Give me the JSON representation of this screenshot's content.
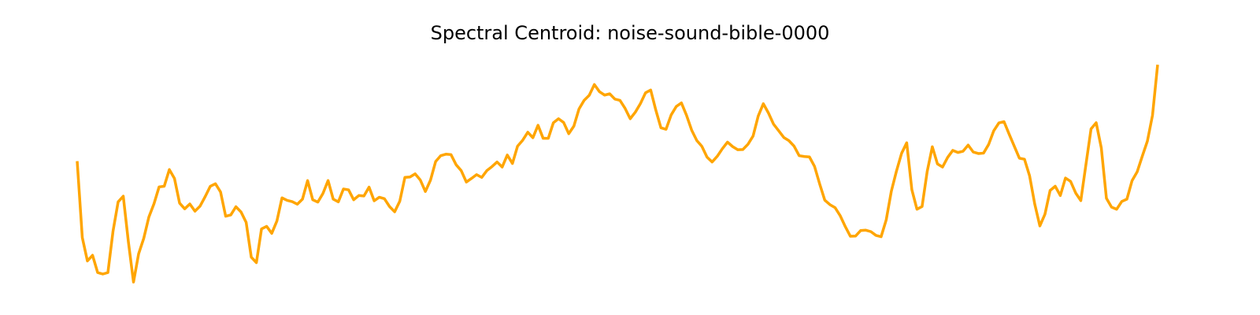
{
  "chart_data": {
    "type": "line",
    "title": "Spectral Centroid: noise-sound-bible-0000",
    "xlabel": "",
    "ylabel": "",
    "axes_visible": false,
    "grid": false,
    "line_color": "#FFA500",
    "ylim": [
      0,
      100
    ],
    "series": [
      {
        "values": [
          53.5,
          17.3,
          6.2,
          8.9,
          0.7,
          0,
          0.7,
          20.3,
          34.2,
          36.9,
          15.3,
          -3.8,
          9.6,
          16.9,
          27,
          33.3,
          41.3,
          41.6,
          49.5,
          45.3,
          33.6,
          30.9,
          33.2,
          29.8,
          32.2,
          36.7,
          41.6,
          42.8,
          38.9,
          27.4,
          28,
          31.9,
          29.4,
          24.5,
          8,
          5.4,
          21.4,
          22.6,
          19.3,
          25.1,
          36.1,
          34.9,
          34.3,
          33.1,
          35.5,
          44.3,
          35.2,
          34.1,
          38.2,
          44.3,
          35.5,
          34.2,
          40.3,
          39.9,
          35.2,
          37.2,
          37,
          41.2,
          34.7,
          36.4,
          35.7,
          32,
          29.5,
          34.5,
          45.8,
          46,
          47.5,
          44.6,
          39.1,
          44.5,
          53.3,
          56.1,
          56.8,
          56.6,
          51.8,
          49,
          43.6,
          45.3,
          47.1,
          45.8,
          49,
          50.9,
          53.1,
          50.7,
          56.4,
          52.4,
          60.6,
          63.4,
          67.2,
          64.6,
          70.5,
          64.3,
          64.3,
          71.7,
          73.6,
          71.8,
          66.5,
          70.1,
          78.2,
          82.3,
          84.7,
          89.8,
          86.4,
          84.8,
          85.4,
          82.9,
          82.3,
          78.5,
          73.6,
          76.7,
          80.8,
          85.9,
          87.2,
          77.7,
          69.3,
          68.6,
          75.4,
          79.4,
          81.1,
          75.2,
          68.2,
          63.3,
          60.5,
          55.4,
          53.1,
          55.8,
          59.4,
          62.5,
          60.4,
          58.9,
          59,
          61.5,
          65.4,
          74.9,
          80.7,
          76.3,
          71,
          67.9,
          64.7,
          63.2,
          60.6,
          56.1,
          55.7,
          55.5,
          51,
          42.7,
          35,
          32.9,
          31.5,
          27.7,
          22.5,
          17.9,
          18,
          20.6,
          20.8,
          20.1,
          18.3,
          17.7,
          25.7,
          39.3,
          48.8,
          57.2,
          62.2,
          40,
          30.7,
          32,
          48.6,
          60.3,
          52.2,
          50.7,
          55.3,
          58.6,
          57.6,
          58.2,
          61.1,
          57.8,
          57.1,
          57.3,
          61.4,
          67.9,
          71.6,
          72.2,
          66.3,
          60.6,
          54.9,
          54.4,
          46.5,
          33.2,
          22.8,
          28.4,
          39.6,
          41.6,
          37.2,
          45.5,
          43.9,
          38.4,
          34.8,
          51.9,
          68.8,
          71.7,
          59.8,
          35.9,
          31.7,
          30.7,
          34.4,
          35.5,
          44.2,
          48.4,
          55.8,
          63,
          75.2,
          99.2
        ]
      }
    ]
  }
}
